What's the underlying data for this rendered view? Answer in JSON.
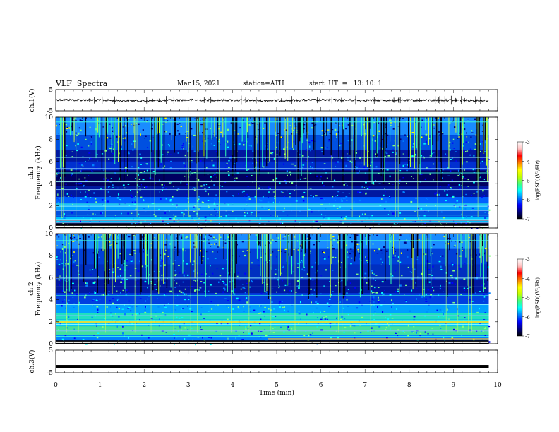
{
  "header": {
    "title": "VLF  Spectra",
    "date": "Mar.15, 2021",
    "station": "station=ATH",
    "start_ut": "start  UT  =   13: 10: 1"
  },
  "chart_data": [
    {
      "type": "line",
      "panel": "ch1-waveform",
      "ylabel": "ch.1(V)",
      "ylim": [
        -5,
        5
      ],
      "y_ticks": [
        "5",
        "-5"
      ],
      "x": [
        0,
        1,
        2,
        3,
        4,
        5,
        6,
        7,
        8,
        9,
        9.8
      ],
      "values": [
        0.2,
        0.0,
        -0.3,
        0.1,
        0.0,
        -0.2,
        0.1,
        0.0,
        -0.1,
        0.0,
        -0.1
      ],
      "series_color": "#000000",
      "xlim": [
        0,
        10
      ]
    },
    {
      "type": "heatmap",
      "panel": "ch1-spectrogram",
      "ylabel": "ch.1\nFrequency  (kHz)",
      "ylim": [
        0,
        10
      ],
      "y_ticks": [
        "0",
        "2",
        "4",
        "6",
        "8",
        "10"
      ],
      "xlim": [
        0,
        10
      ],
      "data_extent_min": 9.8,
      "colorbar": {
        "label": "log(PSD)(V²/Hz)",
        "range": [
          -7,
          -3
        ],
        "ticks": [
          "-3",
          "-4",
          "-5",
          "-6",
          "-7"
        ]
      }
    },
    {
      "type": "heatmap",
      "panel": "ch2-spectrogram",
      "ylabel": "ch.2\nFrequency  (kHz)",
      "ylim": [
        0,
        10
      ],
      "y_ticks": [
        "0",
        "2",
        "4",
        "6",
        "8",
        "10"
      ],
      "xlim": [
        0,
        10
      ],
      "data_extent_min": 9.8,
      "colorbar": {
        "label": "log(PSD)(V²/Hz)",
        "range": [
          -7,
          -3
        ],
        "ticks": [
          "-3",
          "-4",
          "-5",
          "-6",
          "-7"
        ]
      }
    },
    {
      "type": "line",
      "panel": "ch3-waveform",
      "ylabel": "ch.3(V)",
      "ylim": [
        -5,
        5
      ],
      "y_ticks": [
        "5",
        "-5"
      ],
      "x": [
        0,
        9.8
      ],
      "values": [
        -2.2,
        -2.2
      ],
      "series_color": "#000000",
      "xlim": [
        0,
        10
      ],
      "xlabel": "Time  (min)",
      "x_ticks": [
        "0",
        "1",
        "2",
        "3",
        "4",
        "5",
        "6",
        "7",
        "8",
        "9",
        "10"
      ]
    }
  ],
  "colors": {
    "colormap": [
      "#000000",
      "#00007f",
      "#0000ff",
      "#0080ff",
      "#00ffff",
      "#80ff80",
      "#ffff00",
      "#ff8000",
      "#ff0000",
      "#ffffff"
    ]
  }
}
